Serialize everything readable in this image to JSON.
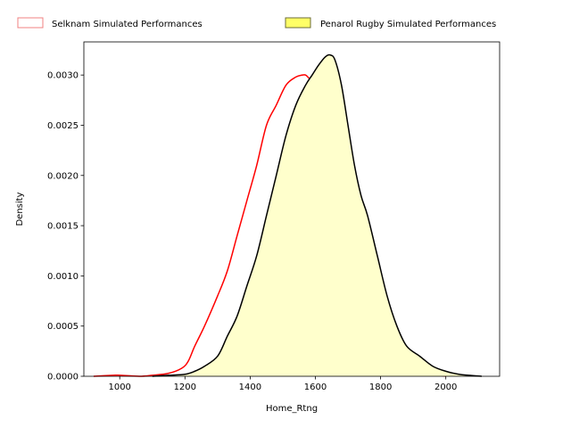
{
  "chart_data": {
    "type": "area",
    "title": "",
    "xlabel": "Home_Rtng",
    "ylabel": "Density",
    "xlim": [
      890,
      2165
    ],
    "ylim": [
      0,
      0.00333
    ],
    "xticks": [
      1000,
      1200,
      1400,
      1600,
      1800,
      2000
    ],
    "yticks": [
      0,
      0.0005,
      0.001,
      0.0015,
      0.002,
      0.0025,
      0.003
    ],
    "ytick_labels": [
      "0.0000",
      "0.0005",
      "0.0010",
      "0.0015",
      "0.0020",
      "0.0025",
      "0.0030"
    ],
    "legend": {
      "placement": "top",
      "entries": [
        {
          "label": "Selknam Simulated Performances",
          "edge": "#f08080",
          "fill": "none"
        },
        {
          "label": "Penarol Rugby Simulated Performances",
          "edge": "#6b6b3a",
          "fill": "#ffff66"
        }
      ]
    },
    "series": [
      {
        "name": "Selknam Simulated Performances",
        "color": "#ff0000",
        "filled": false,
        "x": [
          920,
          980,
          1000,
          1060,
          1100,
          1150,
          1190,
          1210,
          1230,
          1260,
          1300,
          1330,
          1360,
          1390,
          1420,
          1450,
          1480,
          1510,
          1540,
          1560,
          1570,
          1580,
          1600,
          1620,
          1640,
          1660,
          1690,
          1720,
          1750,
          1780,
          1800,
          1820,
          1850,
          1880,
          1920,
          1960,
          2000
        ],
        "y": [
          0.0,
          1e-05,
          1e-05,
          0.0,
          1e-05,
          3e-05,
          8e-05,
          0.00015,
          0.0003,
          0.0005,
          0.0008,
          0.00105,
          0.0014,
          0.00175,
          0.0021,
          0.0025,
          0.0027,
          0.0029,
          0.00298,
          0.003,
          0.003,
          0.00297,
          0.0029,
          0.0027,
          0.0025,
          0.0022,
          0.0017,
          0.0013,
          0.001,
          0.0007,
          0.0005,
          0.0003,
          0.00015,
          0.0001,
          5e-05,
          2e-05,
          0.0
        ]
      },
      {
        "name": "Penarol Rugby Simulated Performances",
        "color": "#000000",
        "fill": "#ffffcc",
        "filled": true,
        "x": [
          1100,
          1150,
          1200,
          1230,
          1260,
          1300,
          1330,
          1360,
          1390,
          1420,
          1450,
          1480,
          1510,
          1540,
          1570,
          1590,
          1610,
          1630,
          1645,
          1660,
          1680,
          1700,
          1720,
          1740,
          1760,
          1790,
          1820,
          1850,
          1880,
          1920,
          1960,
          2000,
          2040,
          2070,
          2110
        ],
        "y": [
          0.0,
          1e-05,
          2e-05,
          5e-05,
          0.0001,
          0.0002,
          0.0004,
          0.0006,
          0.0009,
          0.0012,
          0.0016,
          0.002,
          0.0024,
          0.0027,
          0.0029,
          0.003,
          0.0031,
          0.00318,
          0.0032,
          0.00315,
          0.0029,
          0.0025,
          0.0021,
          0.0018,
          0.0016,
          0.0012,
          0.0008,
          0.0005,
          0.0003,
          0.0002,
          0.0001,
          5e-05,
          2e-05,
          1e-05,
          0.0
        ]
      }
    ]
  }
}
